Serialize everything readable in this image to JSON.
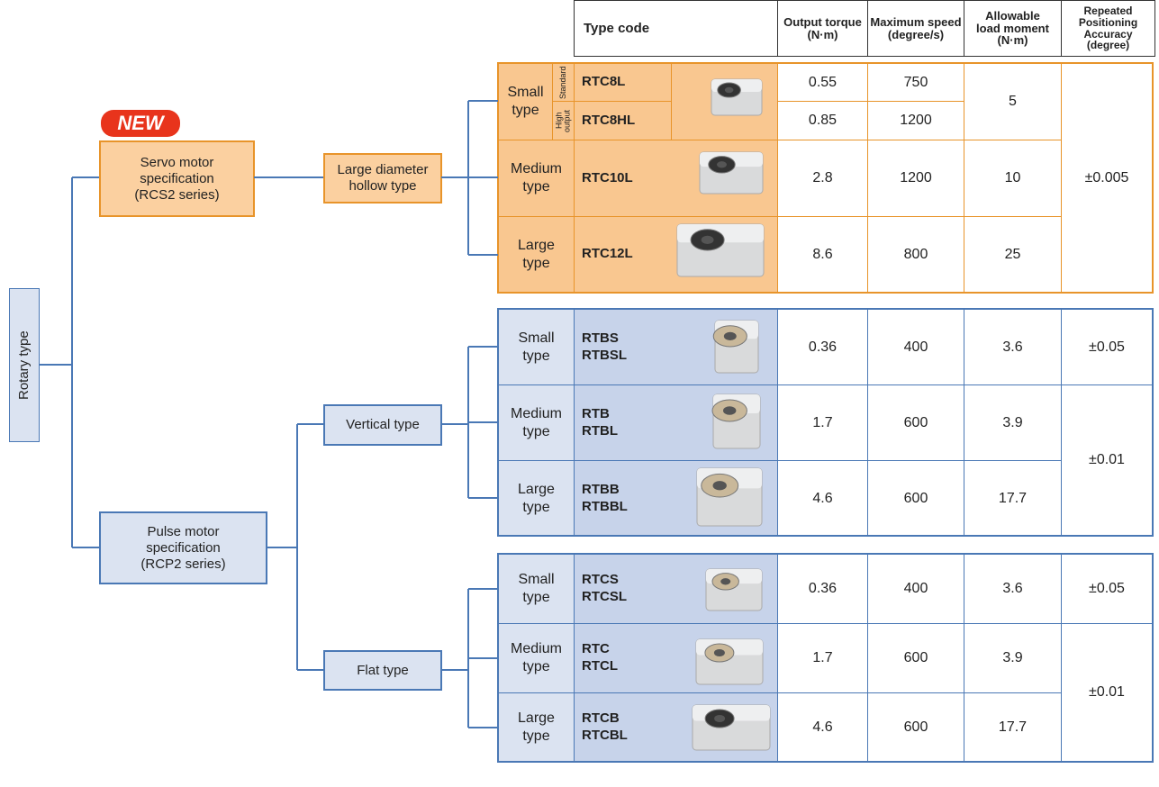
{
  "header": {
    "type_code": "Type code",
    "columns": [
      "Output torque\n(N·m)",
      "Maximum speed\n(degree/s)",
      "Allowable\nload moment\n(N·m)",
      "Repeated\nPositioning\nAccuracy (degree)"
    ]
  },
  "tree": {
    "root": "Rotary type",
    "new_badge": "NEW",
    "servo": "Servo motor\nspecification\n(RCS2 series)",
    "hollow": "Large diameter\nhollow type",
    "pulse": "Pulse motor\nspecification\n(RCP2 series)",
    "vertical": "Vertical type",
    "flat": "Flat type"
  },
  "servo_table": {
    "small_size": "Small\ntype",
    "variants": [
      "Standard",
      "High\noutput"
    ],
    "rows": [
      {
        "model": "RTC8L",
        "torque": 0.55,
        "speed": 750
      },
      {
        "model": "RTC8HL",
        "torque": 0.85,
        "speed": 1200
      },
      {
        "size": "Medium\ntype",
        "model": "RTC10L",
        "torque": 2.8,
        "speed": 1200,
        "moment": 10
      },
      {
        "size": "Large\ntype",
        "model": "RTC12L",
        "torque": 8.6,
        "speed": 800,
        "moment": 25
      }
    ],
    "small_moment": 5,
    "accuracy": "±0.005"
  },
  "vertical_table": {
    "rows": [
      {
        "size": "Small\ntype",
        "models": "RTBS\nRTBSL",
        "torque": 0.36,
        "speed": 400,
        "moment": 3.6,
        "accuracy": "±0.05"
      },
      {
        "size": "Medium\ntype",
        "models": "RTB\nRTBL",
        "torque": 1.7,
        "speed": 600,
        "moment": 3.9
      },
      {
        "size": "Large\ntype",
        "models": "RTBB\nRTBBL",
        "torque": 4.6,
        "speed": 600,
        "moment": 17.7
      }
    ],
    "shared_accuracy": "±0.01"
  },
  "flat_table": {
    "rows": [
      {
        "size": "Small\ntype",
        "models": "RTCS\nRTCSL",
        "torque": 0.36,
        "speed": 400,
        "moment": 3.6,
        "accuracy": "±0.05"
      },
      {
        "size": "Medium\ntype",
        "models": "RTC\nRTCL",
        "torque": 1.7,
        "speed": 600,
        "moment": 3.9
      },
      {
        "size": "Large\ntype",
        "models": "RTCB\nRTCBL",
        "torque": 4.6,
        "speed": 600,
        "moment": 17.7
      }
    ],
    "shared_accuracy": "±0.01"
  }
}
